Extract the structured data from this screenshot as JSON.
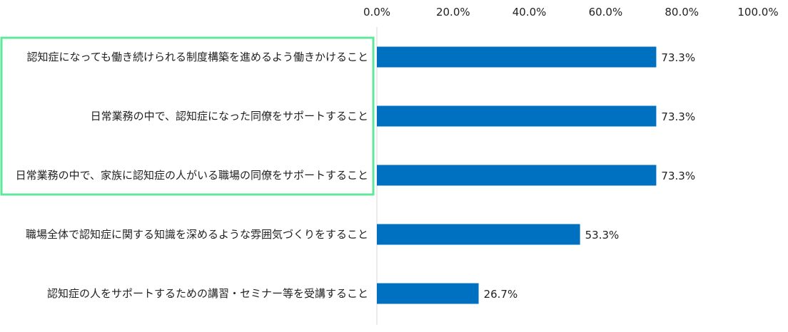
{
  "chart_data": {
    "type": "bar",
    "orientation": "horizontal",
    "categories": [
      "認知症になっても働き続けられる制度構築を進めるよう働きかけること",
      "日常業務の中で、認知症になった同僚をサポートすること",
      "日常業務の中で、家族に認知症の人がいる職場の同僚をサポートすること",
      "職場全体で認知症に関する知識を深めるような雰囲気づくりをすること",
      "認知症の人をサポートするための講習・セミナー等を受講すること"
    ],
    "values": [
      73.3,
      73.3,
      73.3,
      53.3,
      26.7
    ],
    "value_labels": [
      "73.3%",
      "73.3%",
      "73.3%",
      "53.3%",
      "26.7%"
    ],
    "x_ticks": [
      "0.0%",
      "20.0%",
      "40.0%",
      "60.0%",
      "80.0%",
      "100.0%"
    ],
    "x_tick_values": [
      0,
      20,
      40,
      60,
      80,
      100
    ],
    "xlim": [
      0,
      100
    ],
    "axis_position": "top",
    "grid": false,
    "highlighted_categories": [
      0,
      1,
      2
    ],
    "colors": {
      "bar": "#0070C0",
      "highlight_box": "#5EE89A",
      "axis_line": "#D9D9D9"
    }
  }
}
